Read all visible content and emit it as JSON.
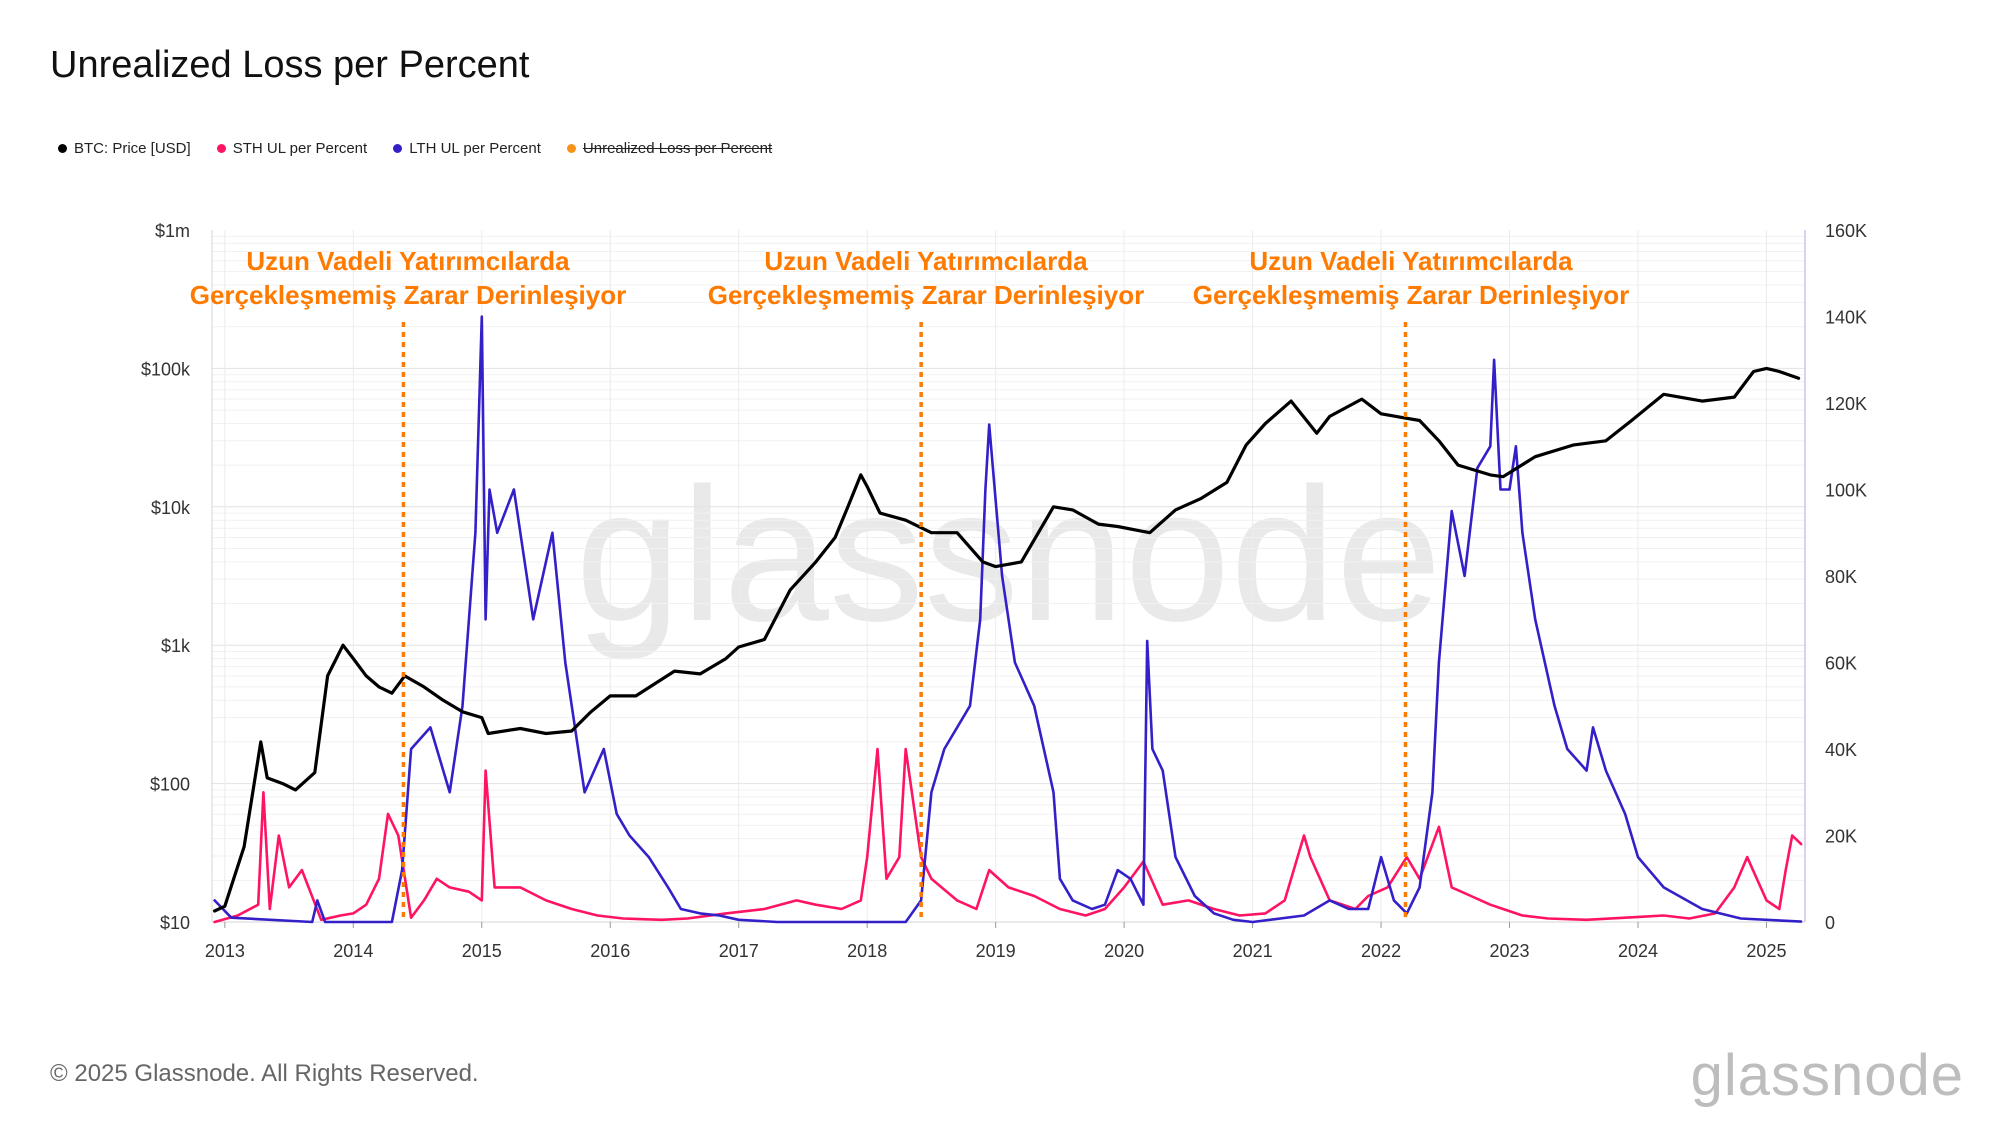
{
  "header": {
    "title": "Unrealized Loss per Percent"
  },
  "legend": [
    {
      "label": "BTC: Price [USD]",
      "color": "#000000",
      "enabled": true
    },
    {
      "label": "STH UL per Percent",
      "color": "#ff1464",
      "enabled": true
    },
    {
      "label": "LTH UL per Percent",
      "color": "#3320c8",
      "enabled": true
    },
    {
      "label": "Unrealized Loss per Percent",
      "color": "#f7931a",
      "enabled": false
    }
  ],
  "annotations": {
    "text_line1": "Uzun Vadeli Yatırımcılarda",
    "text_line2": "Gerçekleşmemiş Zarar Derinleşiyor",
    "color": "#ff7a00",
    "marker_years": [
      2014.39,
      2018.42,
      2022.19
    ]
  },
  "footer": {
    "copyright": "© 2025 Glassnode. All Rights Reserved.",
    "brand": "glassnode"
  },
  "chart_data": {
    "type": "line",
    "x_axis": {
      "range": [
        2012.9,
        2025.3
      ],
      "ticks": [
        "2013",
        "2014",
        "2015",
        "2016",
        "2017",
        "2018",
        "2019",
        "2020",
        "2021",
        "2022",
        "2023",
        "2024",
        "2025"
      ]
    },
    "y_left": {
      "scale": "log",
      "range": [
        10,
        1000000
      ],
      "ticks": [
        "$10",
        "$100",
        "$1k",
        "$10k",
        "$100k",
        "$1m"
      ]
    },
    "y_right": {
      "scale": "linear",
      "range": [
        0,
        160000
      ],
      "ticks": [
        "0",
        "20K",
        "40K",
        "60K",
        "80K",
        "100K",
        "120K",
        "140K",
        "160K"
      ]
    },
    "grid": true,
    "series": [
      {
        "name": "BTC: Price [USD]",
        "axis": "left",
        "color": "#000000",
        "x": [
          2012.92,
          2013.0,
          2013.15,
          2013.28,
          2013.33,
          2013.45,
          2013.55,
          2013.7,
          2013.8,
          2013.92,
          2014.0,
          2014.1,
          2014.2,
          2014.3,
          2014.4,
          2014.55,
          2014.7,
          2014.85,
          2015.0,
          2015.05,
          2015.3,
          2015.5,
          2015.7,
          2015.85,
          2016.0,
          2016.2,
          2016.5,
          2016.7,
          2016.9,
          2017.0,
          2017.2,
          2017.4,
          2017.6,
          2017.75,
          2017.85,
          2017.95,
          2018.0,
          2018.1,
          2018.3,
          2018.5,
          2018.7,
          2018.9,
          2019.0,
          2019.2,
          2019.45,
          2019.6,
          2019.8,
          2019.95,
          2020.2,
          2020.4,
          2020.6,
          2020.8,
          2020.95,
          2021.1,
          2021.3,
          2021.5,
          2021.6,
          2021.85,
          2022.0,
          2022.3,
          2022.45,
          2022.6,
          2022.85,
          2022.95,
          2023.2,
          2023.5,
          2023.75,
          2023.95,
          2024.2,
          2024.5,
          2024.75,
          2024.9,
          2025.0,
          2025.1,
          2025.25
        ],
        "values": [
          12,
          13,
          35,
          200,
          110,
          100,
          90,
          120,
          600,
          1000,
          800,
          600,
          500,
          450,
          600,
          500,
          400,
          330,
          300,
          230,
          250,
          230,
          240,
          330,
          430,
          430,
          650,
          620,
          800,
          970,
          1100,
          2500,
          4000,
          6000,
          10000,
          17000,
          14000,
          9000,
          8000,
          6500,
          6500,
          4000,
          3700,
          4000,
          10000,
          9500,
          7500,
          7200,
          6500,
          9500,
          11500,
          15000,
          28000,
          40000,
          58000,
          34000,
          45000,
          60000,
          47000,
          42000,
          30000,
          20000,
          17000,
          16500,
          23000,
          28000,
          30000,
          42000,
          65000,
          58000,
          62000,
          95000,
          100000,
          95000,
          85000
        ]
      },
      {
        "name": "STH UL per Percent",
        "axis": "right",
        "color": "#ff1464",
        "x": [
          2012.92,
          2013.1,
          2013.26,
          2013.3,
          2013.35,
          2013.42,
          2013.5,
          2013.6,
          2013.75,
          2013.9,
          2014.0,
          2014.1,
          2014.2,
          2014.27,
          2014.35,
          2014.45,
          2014.55,
          2014.65,
          2014.75,
          2014.9,
          2015.0,
          2015.03,
          2015.1,
          2015.3,
          2015.5,
          2015.7,
          2015.9,
          2016.1,
          2016.4,
          2016.6,
          2016.9,
          2017.2,
          2017.45,
          2017.6,
          2017.8,
          2017.95,
          2018.0,
          2018.08,
          2018.15,
          2018.25,
          2018.3,
          2018.42,
          2018.5,
          2018.7,
          2018.85,
          2018.95,
          2019.1,
          2019.3,
          2019.5,
          2019.7,
          2019.85,
          2020.0,
          2020.15,
          2020.3,
          2020.5,
          2020.7,
          2020.9,
          2021.1,
          2021.25,
          2021.4,
          2021.45,
          2021.6,
          2021.8,
          2021.9,
          2022.05,
          2022.2,
          2022.3,
          2022.45,
          2022.55,
          2022.7,
          2022.85,
          2022.95,
          2023.1,
          2023.3,
          2023.6,
          2023.9,
          2024.2,
          2024.4,
          2024.6,
          2024.75,
          2024.85,
          2025.0,
          2025.1,
          2025.15,
          2025.2,
          2025.27
        ],
        "values": [
          0,
          1500,
          4000,
          30000,
          3000,
          20000,
          8000,
          12000,
          500,
          1500,
          2000,
          4000,
          10000,
          25000,
          20000,
          1000,
          5000,
          10000,
          8000,
          7000,
          5000,
          35000,
          8000,
          8000,
          5000,
          3000,
          1500,
          800,
          500,
          800,
          2000,
          3000,
          5000,
          4000,
          3000,
          5000,
          15000,
          40000,
          10000,
          15000,
          40000,
          15000,
          10000,
          5000,
          3000,
          12000,
          8000,
          6000,
          3000,
          1500,
          3000,
          8000,
          14000,
          4000,
          5000,
          3000,
          1500,
          2000,
          5000,
          20000,
          15000,
          5000,
          3000,
          6000,
          8000,
          15000,
          10000,
          22000,
          8000,
          6000,
          4000,
          3000,
          1500,
          800,
          500,
          1000,
          1500,
          800,
          2000,
          8000,
          15000,
          5000,
          3000,
          12000,
          20000,
          18000
        ]
      },
      {
        "name": "LTH UL per Percent",
        "axis": "right",
        "color": "#3320c8",
        "x": [
          2012.92,
          2013.05,
          2013.68,
          2013.72,
          2013.78,
          2014.3,
          2014.38,
          2014.45,
          2014.6,
          2014.75,
          2014.85,
          2014.95,
          2015.0,
          2015.03,
          2015.06,
          2015.12,
          2015.25,
          2015.4,
          2015.55,
          2015.65,
          2015.8,
          2015.95,
          2016.05,
          2016.15,
          2016.3,
          2016.45,
          2016.55,
          2016.7,
          2016.85,
          2017.0,
          2017.3,
          2017.8,
          2018.3,
          2018.42,
          2018.5,
          2018.6,
          2018.8,
          2018.88,
          2018.92,
          2018.95,
          2019.05,
          2019.15,
          2019.3,
          2019.45,
          2019.5,
          2019.6,
          2019.75,
          2019.85,
          2019.95,
          2020.05,
          2020.15,
          2020.18,
          2020.22,
          2020.3,
          2020.4,
          2020.55,
          2020.7,
          2020.85,
          2021.0,
          2021.4,
          2021.6,
          2021.75,
          2021.9,
          2022.0,
          2022.1,
          2022.2,
          2022.3,
          2022.4,
          2022.45,
          2022.55,
          2022.65,
          2022.75,
          2022.85,
          2022.88,
          2022.93,
          2023.0,
          2023.05,
          2023.1,
          2023.2,
          2023.35,
          2023.45,
          2023.6,
          2023.65,
          2023.75,
          2023.9,
          2024.0,
          2024.2,
          2024.5,
          2024.8,
          2025.27
        ],
        "values": [
          5000,
          1000,
          0,
          5000,
          0,
          0,
          12000,
          40000,
          45000,
          30000,
          50000,
          90000,
          140000,
          70000,
          100000,
          90000,
          100000,
          70000,
          90000,
          60000,
          30000,
          40000,
          25000,
          20000,
          15000,
          8000,
          3000,
          2000,
          1500,
          500,
          0,
          0,
          0,
          5000,
          30000,
          40000,
          50000,
          70000,
          100000,
          115000,
          80000,
          60000,
          50000,
          30000,
          10000,
          5000,
          3000,
          4000,
          12000,
          10000,
          4000,
          65000,
          40000,
          35000,
          15000,
          6000,
          2000,
          500,
          0,
          1500,
          5000,
          3000,
          3000,
          15000,
          5000,
          2000,
          8000,
          30000,
          60000,
          95000,
          80000,
          105000,
          110000,
          130000,
          100000,
          100000,
          110000,
          90000,
          70000,
          50000,
          40000,
          35000,
          45000,
          35000,
          25000,
          15000,
          8000,
          3000,
          800,
          100
        ]
      }
    ]
  }
}
